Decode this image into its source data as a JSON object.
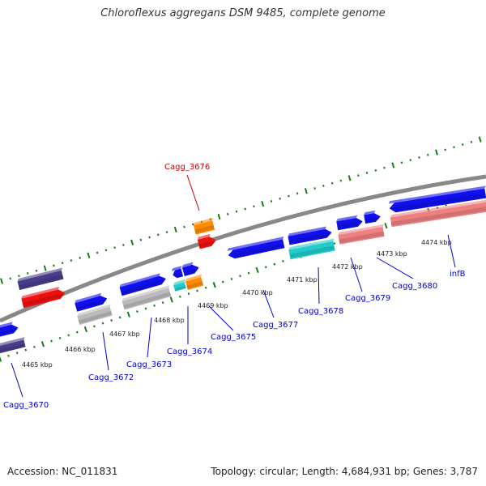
{
  "title": "Chloroflexus aggregans DSM 9485, complete genome",
  "footer": {
    "accession": "Accession: NC_011831",
    "summary": "Topology: circular; Length: 4,684,931 bp; Genes: 3,787"
  },
  "colors": {
    "backbone": "#888888",
    "tick": "#1a7a1a",
    "gene_label": "#0000cc",
    "highlight_label": "#cc0000",
    "label_line": "#0000cc"
  },
  "kbp_ticks": [
    "4465 kbp",
    "4466 kbp",
    "4467 kbp",
    "4468 kbp",
    "4469 kbp",
    "4470 kbp",
    "4471 kbp",
    "4472 kbp",
    "4473 kbp",
    "4474 kbp"
  ],
  "gene_labels": [
    {
      "text": "Cagg_3670",
      "highlight": false
    },
    {
      "text": "Cagg_3672",
      "highlight": false
    },
    {
      "text": "Cagg_3673",
      "highlight": false
    },
    {
      "text": "Cagg_3674",
      "highlight": false
    },
    {
      "text": "Cagg_3675",
      "highlight": false
    },
    {
      "text": "Cagg_3676",
      "highlight": true
    },
    {
      "text": "Cagg_3677",
      "highlight": false
    },
    {
      "text": "Cagg_3678",
      "highlight": false
    },
    {
      "text": "Cagg_3679",
      "highlight": false
    },
    {
      "text": "Cagg_3680",
      "highlight": false
    },
    {
      "text": "infB",
      "highlight": false
    }
  ],
  "feature_colors": {
    "blue": "#1010ee",
    "navy": "#483d8b",
    "red": "#ee1111",
    "grey": "#bbbbbb",
    "orange": "#ff8c00",
    "cyan": "#22cccc",
    "salmon": "#ee8080"
  }
}
